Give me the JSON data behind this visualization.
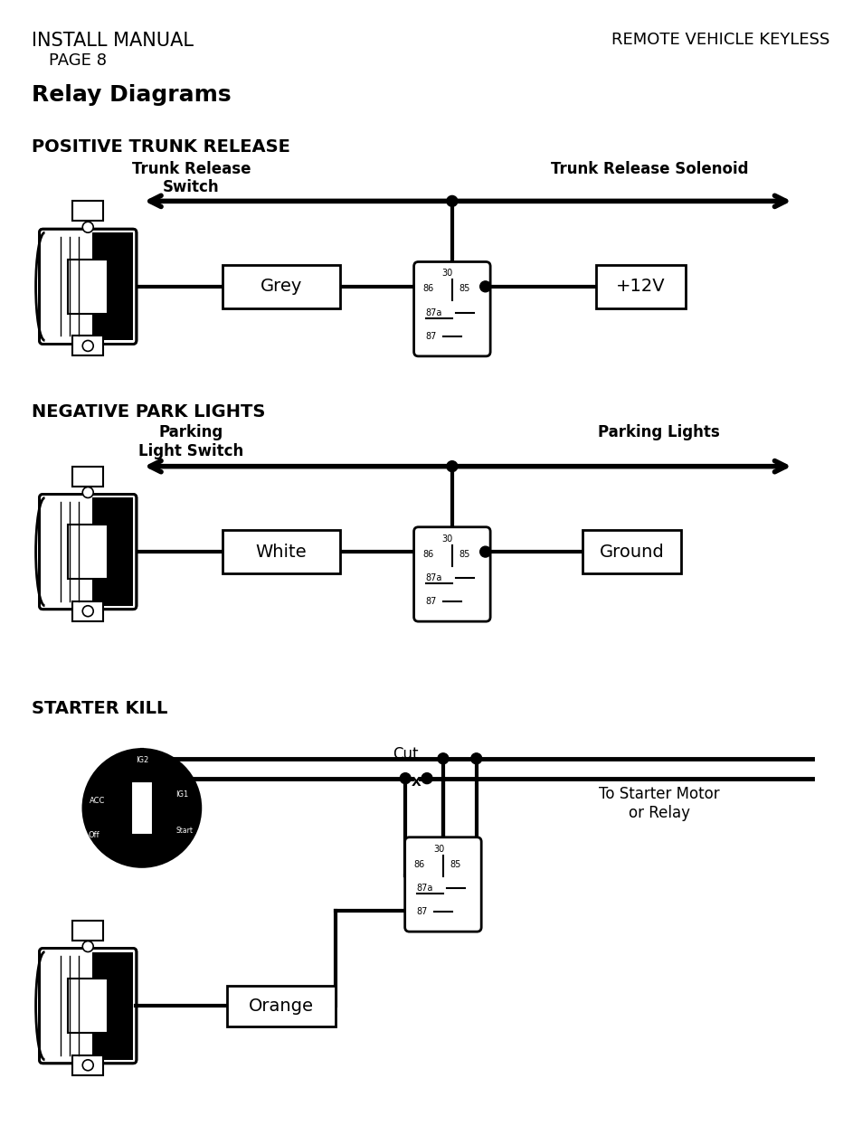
{
  "title_left": "INSTALL MANUAL",
  "title_page": "PAGE 8",
  "title_right": "REMOTE VEHICLE KEYLESS",
  "subtitle": "Relay Diagrams",
  "section1_title": "POSITIVE TRUNK RELEASE",
  "section2_title": "NEGATIVE PARK LIGHTS",
  "section3_title": "STARTER KILL",
  "s1_label_left": "Trunk Release\nSwitch",
  "s1_label_right": "Trunk Release Solenoid",
  "s1_wire_label": "Grey",
  "s1_box_label": "+12V",
  "s2_label_left": "Parking\nLight Switch",
  "s2_label_right": "Parking Lights",
  "s2_wire_label": "White",
  "s2_box_label": "Ground",
  "s3_label_cut": "Cut",
  "s3_label_right": "To Starter Motor\nor Relay",
  "s3_wire_label": "Orange",
  "bg_color": "#ffffff",
  "line_color": "#000000"
}
